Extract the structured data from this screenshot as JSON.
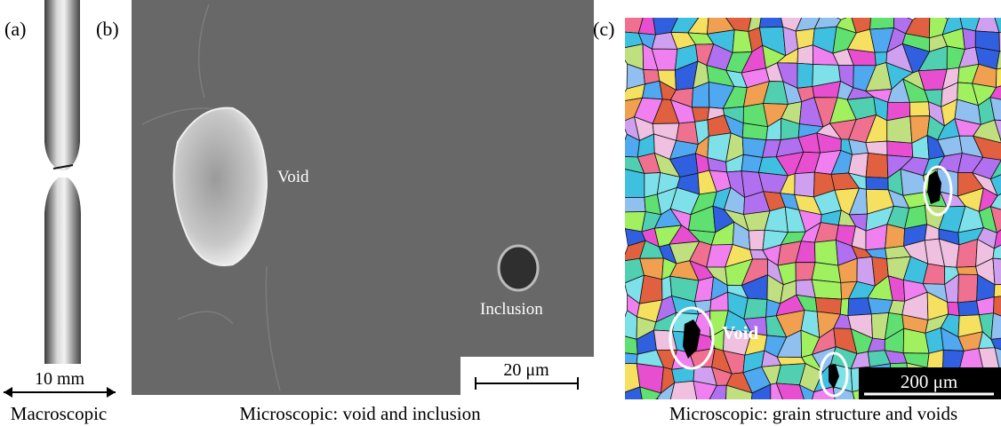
{
  "panels": [
    {
      "label": "(a)",
      "caption": "Macroscopic",
      "scale_bar": "10 mm"
    },
    {
      "label": "(b)",
      "caption": "Microscopic: void and inclusion",
      "annotations": [
        "Void",
        "Inclusion"
      ],
      "scale_bar": "20 μm"
    },
    {
      "label": "(c)",
      "caption": "Microscopic: grain structure and voids",
      "annotations": [
        "Void"
      ],
      "scale_bar": "200 μm"
    }
  ]
}
